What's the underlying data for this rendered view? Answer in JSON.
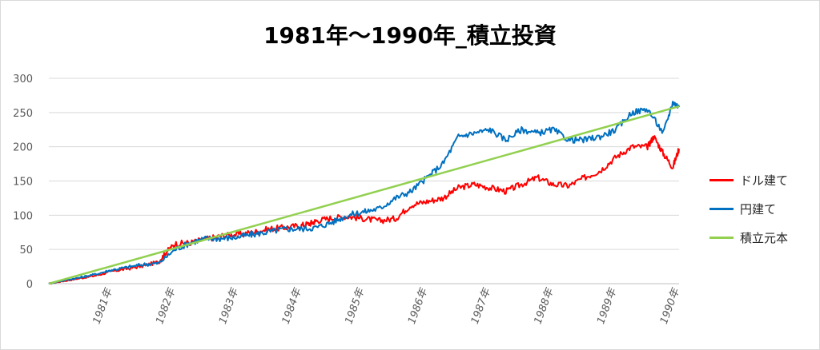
{
  "chart_data": {
    "type": "line",
    "title": "1981年～1990年_積立投資",
    "xlabel": "",
    "ylabel": "",
    "ylim": [
      0,
      300
    ],
    "yticks": [
      0,
      50,
      100,
      150,
      200,
      250,
      300
    ],
    "xlim": [
      1980,
      1990
    ],
    "xticks": [
      {
        "x": 1981,
        "label": "1981年"
      },
      {
        "x": 1982,
        "label": "1982年"
      },
      {
        "x": 1983,
        "label": "1983年"
      },
      {
        "x": 1984,
        "label": "1984年"
      },
      {
        "x": 1985,
        "label": "1985年"
      },
      {
        "x": 1986,
        "label": "1986年"
      },
      {
        "x": 1987,
        "label": "1987年"
      },
      {
        "x": 1988,
        "label": "1988年"
      },
      {
        "x": 1989,
        "label": "1989年"
      },
      {
        "x": 1990,
        "label": "1990年"
      }
    ],
    "grid": true,
    "legend": "right",
    "series": [
      {
        "name": "ドル建て",
        "color": "#ff0000",
        "x": [
          1980.0,
          1980.25,
          1980.5,
          1980.75,
          1981.0,
          1981.25,
          1981.5,
          1981.75,
          1981.85,
          1982.0,
          1982.25,
          1982.5,
          1982.75,
          1983.0,
          1983.25,
          1983.5,
          1983.75,
          1984.0,
          1984.15,
          1984.25,
          1984.5,
          1984.75,
          1985.0,
          1985.25,
          1985.5,
          1985.75,
          1986.0,
          1986.25,
          1986.5,
          1986.75,
          1987.0,
          1987.25,
          1987.5,
          1987.75,
          1988.0,
          1988.25,
          1988.5,
          1988.75,
          1989.0,
          1989.25,
          1989.5,
          1989.6,
          1989.75,
          1989.9,
          1990.0
        ],
        "y": [
          0,
          4,
          8,
          12,
          18,
          22,
          26,
          32,
          45,
          58,
          60,
          65,
          70,
          72,
          75,
          80,
          82,
          85,
          88,
          92,
          96,
          98,
          95,
          92,
          95,
          115,
          120,
          125,
          140,
          145,
          140,
          135,
          145,
          155,
          145,
          143,
          155,
          165,
          185,
          200,
          200,
          215,
          190,
          170,
          197
        ]
      },
      {
        "name": "円建て",
        "color": "#0070c0",
        "x": [
          1980.0,
          1980.25,
          1980.5,
          1980.75,
          1981.0,
          1981.25,
          1981.5,
          1981.75,
          1982.0,
          1982.25,
          1982.5,
          1982.75,
          1983.0,
          1983.25,
          1983.5,
          1983.75,
          1984.0,
          1984.25,
          1984.5,
          1984.75,
          1985.0,
          1985.25,
          1985.5,
          1985.75,
          1986.0,
          1986.25,
          1986.5,
          1986.75,
          1987.0,
          1987.25,
          1987.5,
          1987.75,
          1988.0,
          1988.25,
          1988.5,
          1988.75,
          1989.0,
          1989.25,
          1989.5,
          1989.75,
          1989.9,
          1990.0
        ],
        "y": [
          0,
          5,
          9,
          14,
          20,
          24,
          28,
          30,
          50,
          60,
          66,
          66,
          68,
          72,
          76,
          80,
          80,
          82,
          90,
          100,
          105,
          110,
          125,
          135,
          155,
          175,
          215,
          220,
          225,
          210,
          225,
          220,
          225,
          210,
          210,
          215,
          225,
          250,
          255,
          220,
          265,
          258
        ]
      },
      {
        "name": "積立元本",
        "color": "#92d050",
        "x": [
          1980.0,
          1990.0
        ],
        "y": [
          0,
          259
        ]
      }
    ]
  }
}
